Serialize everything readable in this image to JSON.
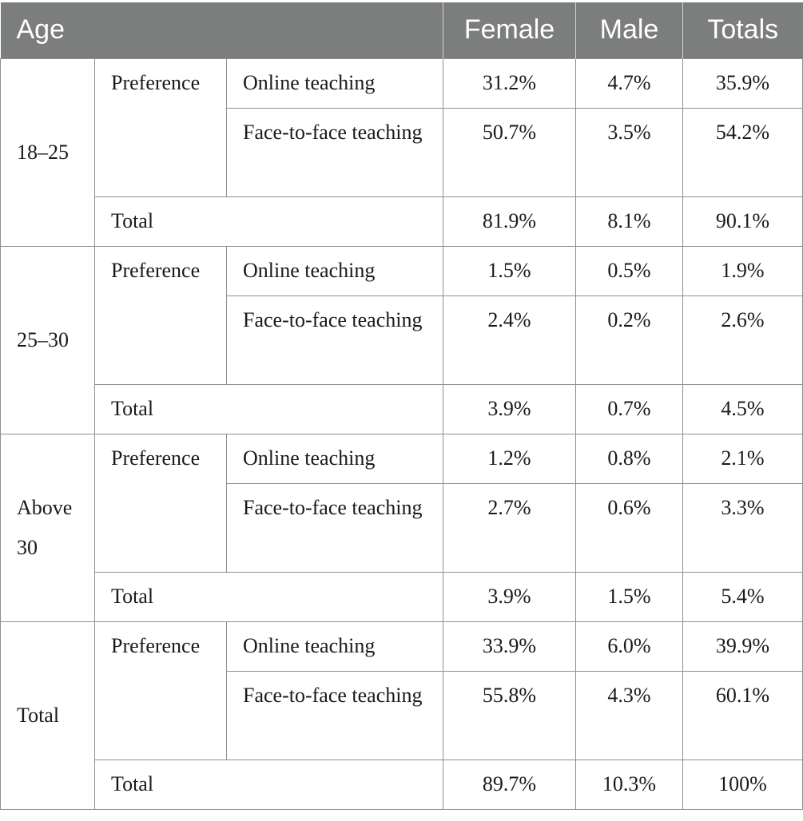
{
  "header": {
    "age": "Age",
    "female": "Female",
    "male": "Male",
    "totals": "Totals"
  },
  "groups": [
    {
      "age": "18–25",
      "preference": "Preference",
      "rows": [
        {
          "label": "Online teaching",
          "female": "31.2%",
          "male": "4.7%",
          "totals": "35.9%"
        },
        {
          "label": "Face-to-face teaching",
          "female": "50.7%",
          "male": "3.5%",
          "totals": "54.2%"
        }
      ],
      "total": {
        "label": "Total",
        "female": "81.9%",
        "male": "8.1%",
        "totals": "90.1%"
      }
    },
    {
      "age": "25–30",
      "preference": "Preference",
      "rows": [
        {
          "label": "Online teaching",
          "female": "1.5%",
          "male": "0.5%",
          "totals": "1.9%"
        },
        {
          "label": "Face-to-face teaching",
          "female": "2.4%",
          "male": "0.2%",
          "totals": "2.6%"
        }
      ],
      "total": {
        "label": "Total",
        "female": "3.9%",
        "male": "0.7%",
        "totals": "4.5%"
      }
    },
    {
      "age": "Above 30",
      "preference": "Preference",
      "rows": [
        {
          "label": "Online teaching",
          "female": "1.2%",
          "male": "0.8%",
          "totals": "2.1%"
        },
        {
          "label": "Face-to-face teaching",
          "female": "2.7%",
          "male": "0.6%",
          "totals": "3.3%"
        }
      ],
      "total": {
        "label": "Total",
        "female": "3.9%",
        "male": "1.5%",
        "totals": "5.4%"
      }
    },
    {
      "age": "Total",
      "preference": "Preference",
      "rows": [
        {
          "label": "Online teaching",
          "female": "33.9%",
          "male": "6.0%",
          "totals": "39.9%"
        },
        {
          "label": "Face-to-face teaching",
          "female": "55.8%",
          "male": "4.3%",
          "totals": "60.1%"
        }
      ],
      "total": {
        "label": "Total",
        "female": "89.7%",
        "male": "10.3%",
        "totals": "100%"
      }
    }
  ]
}
